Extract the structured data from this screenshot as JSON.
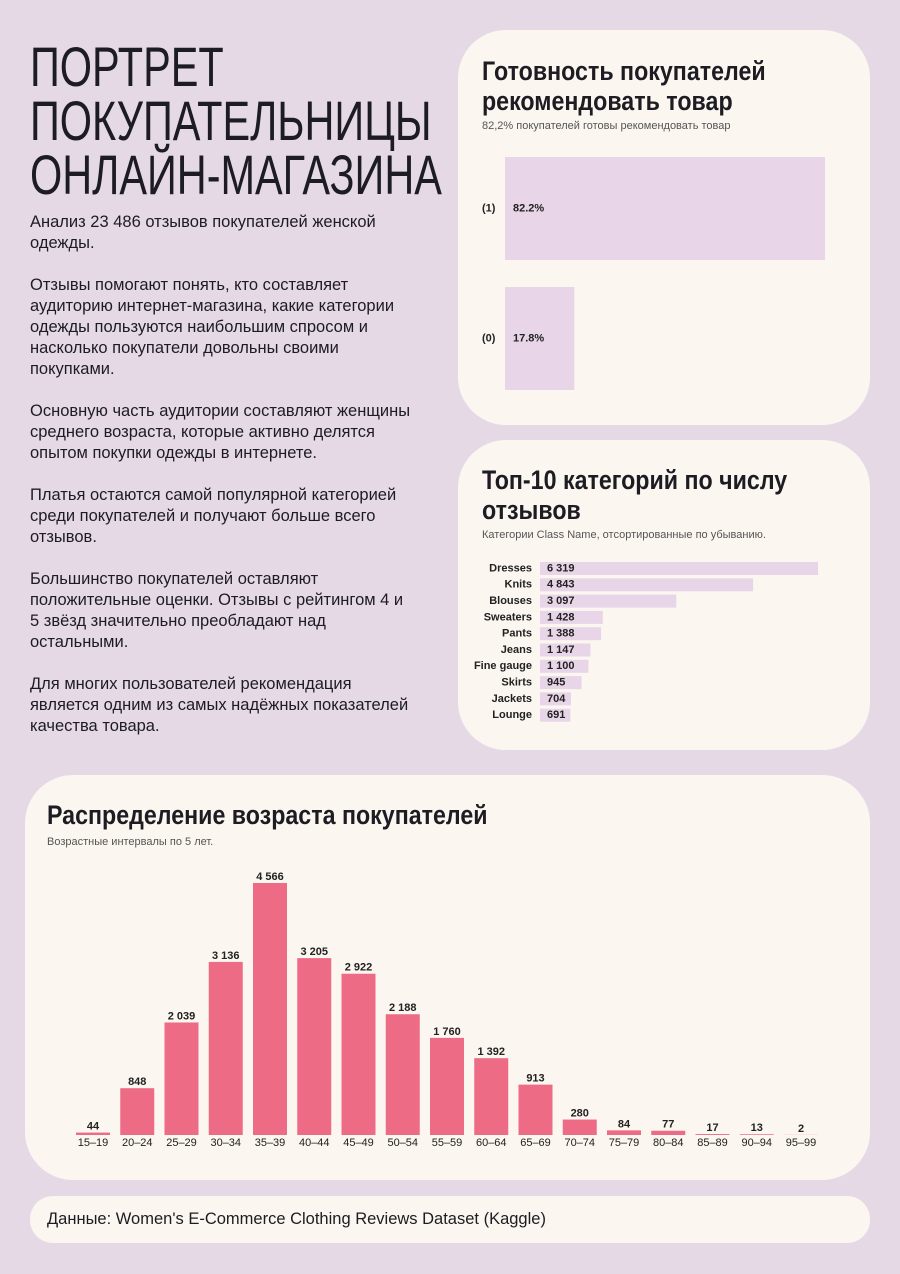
{
  "header": {
    "title_lines": [
      "ПОРТРЕТ",
      "ПОКУПАТЕЛЬНИЦЫ",
      "ОНЛАЙН-МАГАЗИНА"
    ],
    "paragraphs": [
      "Анализ 23 486 отзывов покупателей женской одежды.",
      "Отзывы помогают понять, кто составляет аудиторию интернет-магазина, какие категории одежды пользуются наибольшим спросом и насколько покупатели довольны своими покупками.",
      "Основную часть аудитории составляют женщины среднего возраста, которые активно делятся опытом покупки одежды в интернете.",
      "Платья остаются самой популярной категорией среди покупателей и получают больше всего отзывов.",
      "Большинство покупателей оставляют положительные оценки. Отзывы с рейтингом 4 и 5 звёзд значительно преобладают над остальными.",
      "Для многих пользователей рекомендация является одним из самых надёжных показателей качества товара."
    ]
  },
  "chart_data": [
    {
      "type": "bar",
      "orientation": "horizontal",
      "title": "Готовность покупателей рекомендовать товар",
      "subtitle": "82,2% покупателей готовы рекомендовать товар",
      "categories": [
        "(1)",
        "(0)"
      ],
      "values": [
        82.2,
        17.8
      ],
      "value_labels": [
        "82.2%",
        "17.8%"
      ],
      "color": "#e8d6e8"
    },
    {
      "type": "bar",
      "orientation": "horizontal",
      "title": "Топ-10 категорий по числу отзывов",
      "subtitle": "Категории Class Name, отсортированные по убыванию.",
      "categories": [
        "Dresses",
        "Knits",
        "Blouses",
        "Sweaters",
        "Pants",
        "Jeans",
        "Fine gauge",
        "Skirts",
        "Jackets",
        "Lounge"
      ],
      "values": [
        6319,
        4843,
        3097,
        1428,
        1388,
        1147,
        1100,
        945,
        704,
        691
      ],
      "value_labels": [
        "6 319",
        "4 843",
        "3 097",
        "1 428",
        "1 388",
        "1 147",
        "1 100",
        "945",
        "704",
        "691"
      ],
      "color": "#e8d6e8"
    },
    {
      "type": "bar",
      "orientation": "vertical",
      "title": "Распределение возраста покупателей",
      "subtitle": "Возрастные интервалы по 5 лет.",
      "categories": [
        "15–19",
        "20–24",
        "25–29",
        "30–34",
        "35–39",
        "40–44",
        "45–49",
        "50–54",
        "55–59",
        "60–64",
        "65–69",
        "70–74",
        "75–79",
        "80–84",
        "85–89",
        "90–94",
        "95–99"
      ],
      "values": [
        44,
        848,
        2039,
        3136,
        4566,
        3205,
        2922,
        2188,
        1760,
        1392,
        913,
        280,
        84,
        77,
        17,
        13,
        2
      ],
      "value_labels": [
        "44",
        "848",
        "2 039",
        "3 136",
        "4 566",
        "3 205",
        "2 922",
        "2 188",
        "1 760",
        "1 392",
        "913",
        "280",
        "84",
        "77",
        "17",
        "13",
        "2"
      ],
      "color": "#ee6b86"
    }
  ],
  "footer": "Данные: Women's E-Commerce Clothing Reviews Dataset (Kaggle)"
}
